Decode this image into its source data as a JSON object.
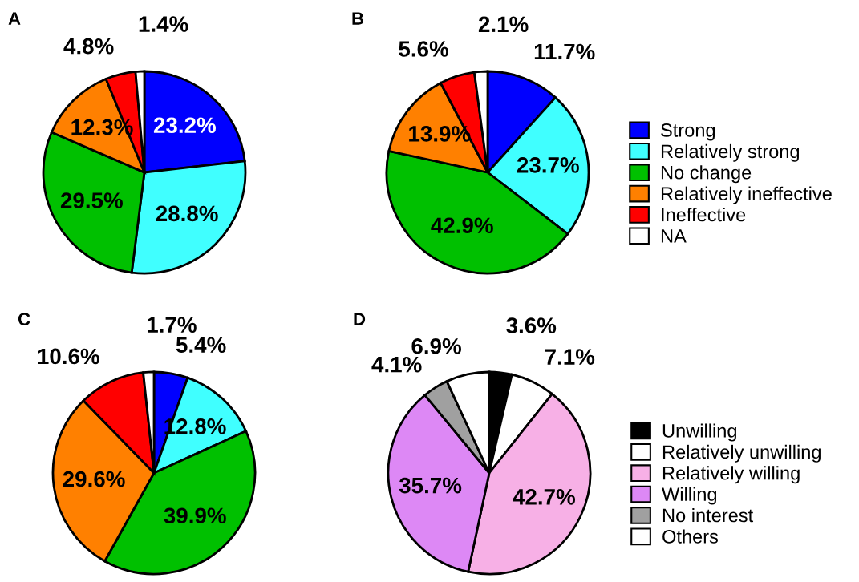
{
  "chart_data": [
    {
      "type": "pie",
      "title": "A",
      "categories": [
        null,
        null,
        null,
        null,
        null,
        null
      ],
      "values": [
        23.2,
        28.8,
        29.5,
        12.3,
        4.8,
        1.4
      ],
      "value_labels": [
        "23.2%",
        "28.8%",
        "29.5%",
        "12.3%",
        "4.8%",
        "1.4%"
      ],
      "colors": [
        "#0000ff",
        "#40ffff",
        "#00c000",
        "#ff8000",
        "#ff0000",
        "#ffffff"
      ]
    },
    {
      "type": "pie",
      "title": "B",
      "categories": [
        "Strong",
        "Relatively strong",
        "No change",
        "Relatively ineffective",
        "Ineffective",
        "NA"
      ],
      "values": [
        11.7,
        23.7,
        42.9,
        13.9,
        5.6,
        2.1
      ],
      "value_labels": [
        "11.7%",
        "23.7%",
        "42.9%",
        "13.9%",
        "5.6%",
        "2.1%"
      ],
      "colors": [
        "#0000ff",
        "#40ffff",
        "#00c000",
        "#ff8000",
        "#ff0000",
        "#ffffff"
      ],
      "legend": "right"
    },
    {
      "type": "pie",
      "title": "C",
      "categories": [
        null,
        null,
        null,
        null,
        null,
        null
      ],
      "values": [
        5.4,
        12.8,
        39.9,
        29.6,
        10.6,
        1.7
      ],
      "value_labels": [
        "5.4%",
        "12.8%",
        "39.9%",
        "29.6%",
        "10.6%",
        "1.7%"
      ],
      "colors": [
        "#0000ff",
        "#40ffff",
        "#00c000",
        "#ff8000",
        "#ff0000",
        "#ffffff"
      ]
    },
    {
      "type": "pie",
      "title": "D",
      "categories": [
        "Unwilling",
        "Relatively unwilling",
        "Relatively willing",
        "Willing",
        "No interest",
        "Others"
      ],
      "values": [
        3.6,
        7.1,
        42.7,
        35.7,
        4.1,
        6.9
      ],
      "value_labels": [
        "3.6%",
        "7.1%",
        "42.7%",
        "35.7%",
        "4.1%",
        "6.9%"
      ],
      "colors": [
        "#000000",
        "#ffffff",
        "#f7b0e6",
        "#dd88f5",
        "#a0a0a0",
        "#ffffff"
      ],
      "legend": "right"
    }
  ]
}
